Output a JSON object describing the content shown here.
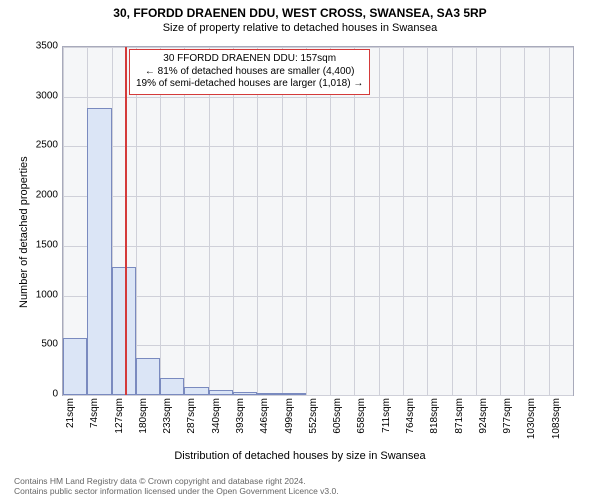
{
  "title": "30, FFORDD DRAENEN DDU, WEST CROSS, SWANSEA, SA3 5RP",
  "subtitle": "Size of property relative to detached houses in Swansea",
  "y_axis_label": "Number of detached properties",
  "x_axis_label": "Distribution of detached houses by size in Swansea",
  "chart": {
    "type": "bar",
    "background_color": "#f5f6f8",
    "grid_color": "#cfd0d9",
    "border_color": "#a8aabb",
    "bar_fill": "#dbe5f6",
    "bar_border": "#7a8abf",
    "x_start": 21,
    "x_step": 53,
    "ylim": [
      0,
      3500
    ],
    "ytick_step": 500,
    "yticks": [
      0,
      500,
      1000,
      1500,
      2000,
      2500,
      3000,
      3500
    ],
    "xticks": [
      "21sqm",
      "74sqm",
      "127sqm",
      "180sqm",
      "233sqm",
      "287sqm",
      "340sqm",
      "393sqm",
      "446sqm",
      "499sqm",
      "552sqm",
      "605sqm",
      "658sqm",
      "711sqm",
      "764sqm",
      "818sqm",
      "871sqm",
      "924sqm",
      "977sqm",
      "1030sqm",
      "1083sqm"
    ],
    "values": [
      570,
      2890,
      1290,
      370,
      170,
      80,
      50,
      30,
      20,
      15,
      0,
      0,
      0,
      0,
      0,
      0,
      0,
      0,
      0,
      0,
      0
    ],
    "marker": {
      "color": "#d43a3a",
      "x_value": 157
    },
    "annotation": {
      "line1": "30 FFORDD DRAENEN DDU: 157sqm",
      "line2": "← 81% of detached houses are smaller (4,400)",
      "line3": "19% of semi-detached houses are larger (1,018) →",
      "border_color": "#d43a3a",
      "bg_color": "#ffffff"
    }
  },
  "footnote": {
    "line1": "Contains HM Land Registry data © Crown copyright and database right 2024.",
    "line2": "Contains public sector information licensed under the Open Government Licence v3.0."
  }
}
